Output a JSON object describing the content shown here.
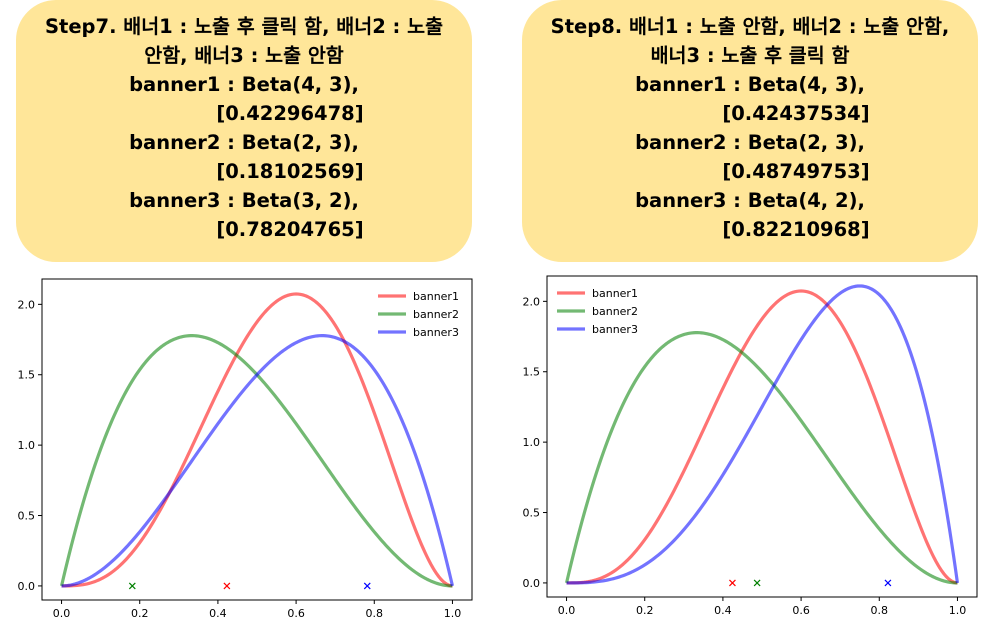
{
  "panels": [
    {
      "callout": {
        "title": "Step7. 배너1 : 노출 후 클릭 함, 배너2 : 노출 안함, 배너3 : 노출 안함",
        "banners": [
          {
            "label": "banner1 : Beta(4, 3),",
            "sample": "[0.42296478]"
          },
          {
            "label": "banner2 : Beta(2, 3),",
            "sample": "[0.18102569]"
          },
          {
            "label": "banner3 : Beta(3, 2),",
            "sample": "[0.78204765]"
          }
        ]
      }
    },
    {
      "callout": {
        "title": "Step8. 배너1 : 노출 안함, 배너2 : 노출 안함, 배너3 : 노출 후 클릭 함",
        "banners": [
          {
            "label": "banner1 : Beta(4, 3),",
            "sample": "[0.42437534]"
          },
          {
            "label": "banner2 : Beta(2, 3),",
            "sample": "[0.48749753]"
          },
          {
            "label": "banner3 : Beta(4, 2),",
            "sample": "[0.82210968]"
          }
        ]
      }
    }
  ],
  "chart_data": [
    {
      "type": "line",
      "title": "",
      "xlabel": "",
      "ylabel": "",
      "xlim": [
        -0.05,
        1.05
      ],
      "ylim": [
        -0.1,
        2.18
      ],
      "xticks": [
        "0.0",
        "0.2",
        "0.4",
        "0.6",
        "0.8",
        "1.0"
      ],
      "yticks": [
        "0.0",
        "0.5",
        "1.0",
        "1.5",
        "2.0"
      ],
      "legend_position": "top-right",
      "series": [
        {
          "name": "banner1",
          "color": "#ff0000",
          "beta": [
            4,
            3
          ],
          "sample": 0.42296478
        },
        {
          "name": "banner2",
          "color": "#008000",
          "beta": [
            2,
            3
          ],
          "sample": 0.18102569
        },
        {
          "name": "banner3",
          "color": "#0000ff",
          "beta": [
            3,
            2
          ],
          "sample": 0.78204765
        }
      ]
    },
    {
      "type": "line",
      "title": "",
      "xlabel": "",
      "ylabel": "",
      "xlim": [
        -0.05,
        1.05
      ],
      "ylim": [
        -0.1,
        2.18
      ],
      "xticks": [
        "0.0",
        "0.2",
        "0.4",
        "0.6",
        "0.8",
        "1.0"
      ],
      "yticks": [
        "0.0",
        "0.5",
        "1.0",
        "1.5",
        "2.0"
      ],
      "legend_position": "top-left",
      "series": [
        {
          "name": "banner1",
          "color": "#ff0000",
          "beta": [
            4,
            3
          ],
          "sample": 0.42437534
        },
        {
          "name": "banner2",
          "color": "#008000",
          "beta": [
            2,
            3
          ],
          "sample": 0.48749753
        },
        {
          "name": "banner3",
          "color": "#0000ff",
          "beta": [
            4,
            2
          ],
          "sample": 0.82210968
        }
      ]
    }
  ]
}
